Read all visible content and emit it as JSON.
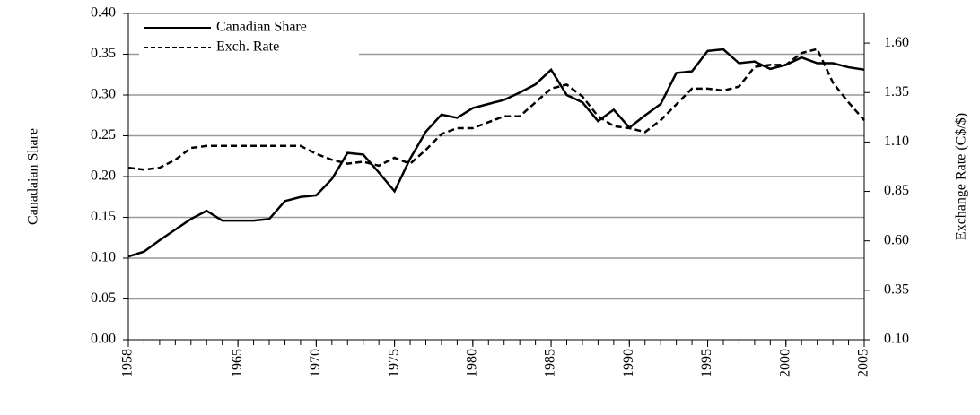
{
  "chart_data": {
    "type": "line",
    "x": [
      1958,
      1959,
      1960,
      1961,
      1962,
      1963,
      1964,
      1965,
      1966,
      1967,
      1968,
      1969,
      1970,
      1971,
      1972,
      1973,
      1974,
      1975,
      1976,
      1977,
      1978,
      1979,
      1980,
      1981,
      1982,
      1983,
      1984,
      1985,
      1986,
      1987,
      1988,
      1989,
      1990,
      1991,
      1992,
      1993,
      1994,
      1995,
      1996,
      1997,
      1998,
      1999,
      2000,
      2001,
      2002,
      2003,
      2004,
      2005
    ],
    "series": [
      {
        "name": "Canadian Share",
        "color": "#000000",
        "style": "solid",
        "axis": "y",
        "values": [
          0.102,
          0.108,
          0.122,
          0.135,
          0.148,
          0.158,
          0.146,
          0.146,
          0.146,
          0.148,
          0.17,
          0.175,
          0.177,
          0.197,
          0.229,
          0.227,
          0.205,
          0.182,
          0.222,
          0.255,
          0.276,
          0.272,
          0.284,
          0.289,
          0.294,
          0.303,
          0.313,
          0.331,
          0.3,
          0.291,
          0.268,
          0.282,
          0.26,
          0.275,
          0.289,
          0.327,
          0.329,
          0.354,
          0.356,
          0.339,
          0.341,
          0.332,
          0.337,
          0.346,
          0.339,
          0.339,
          0.334,
          0.331
        ]
      },
      {
        "name": "Exch. Rate",
        "color": "#000000",
        "style": "dashed",
        "axis": "y2",
        "values": [
          0.97,
          0.96,
          0.97,
          1.01,
          1.07,
          1.08,
          1.08,
          1.08,
          1.08,
          1.08,
          1.08,
          1.08,
          1.04,
          1.01,
          0.99,
          1.0,
          0.98,
          1.02,
          0.99,
          1.06,
          1.14,
          1.17,
          1.17,
          1.2,
          1.23,
          1.23,
          1.3,
          1.37,
          1.39,
          1.33,
          1.23,
          1.18,
          1.17,
          1.15,
          1.21,
          1.29,
          1.37,
          1.37,
          1.36,
          1.38,
          1.48,
          1.49,
          1.49,
          1.55,
          1.57,
          1.4,
          1.3,
          1.21
        ]
      }
    ],
    "xlim": [
      1958,
      2005
    ],
    "xticks": [
      1958,
      1965,
      1970,
      1975,
      1980,
      1985,
      1990,
      1995,
      2000,
      2005
    ],
    "ylim": [
      0,
      0.4
    ],
    "yticks": [
      {
        "value": 0,
        "label": "0.00"
      },
      {
        "value": 0.05,
        "label": "0.05"
      },
      {
        "value": 0.1,
        "label": "0.10"
      },
      {
        "value": 0.15,
        "label": "0.15"
      },
      {
        "value": 0.2,
        "label": "0.20"
      },
      {
        "value": 0.25,
        "label": "0.25"
      },
      {
        "value": 0.3,
        "label": "0.30"
      },
      {
        "value": 0.35,
        "label": "0.35"
      },
      {
        "value": 0.4,
        "label": "0.40"
      }
    ],
    "y2lim": [
      0.1,
      1.75
    ],
    "y2ticks": [
      {
        "value": 0.1,
        "label": "0.10"
      },
      {
        "value": 0.35,
        "label": "0.35"
      },
      {
        "value": 0.6,
        "label": "0.60"
      },
      {
        "value": 0.85,
        "label": "0.85"
      },
      {
        "value": 1.1,
        "label": "1.10"
      },
      {
        "value": 1.35,
        "label": "1.35"
      },
      {
        "value": 1.6,
        "label": "1.60"
      }
    ],
    "ylabel": "Canadaian  Share",
    "y2label": "Exchange Rate (C$/$)",
    "grid": true,
    "legend": "upper left"
  }
}
